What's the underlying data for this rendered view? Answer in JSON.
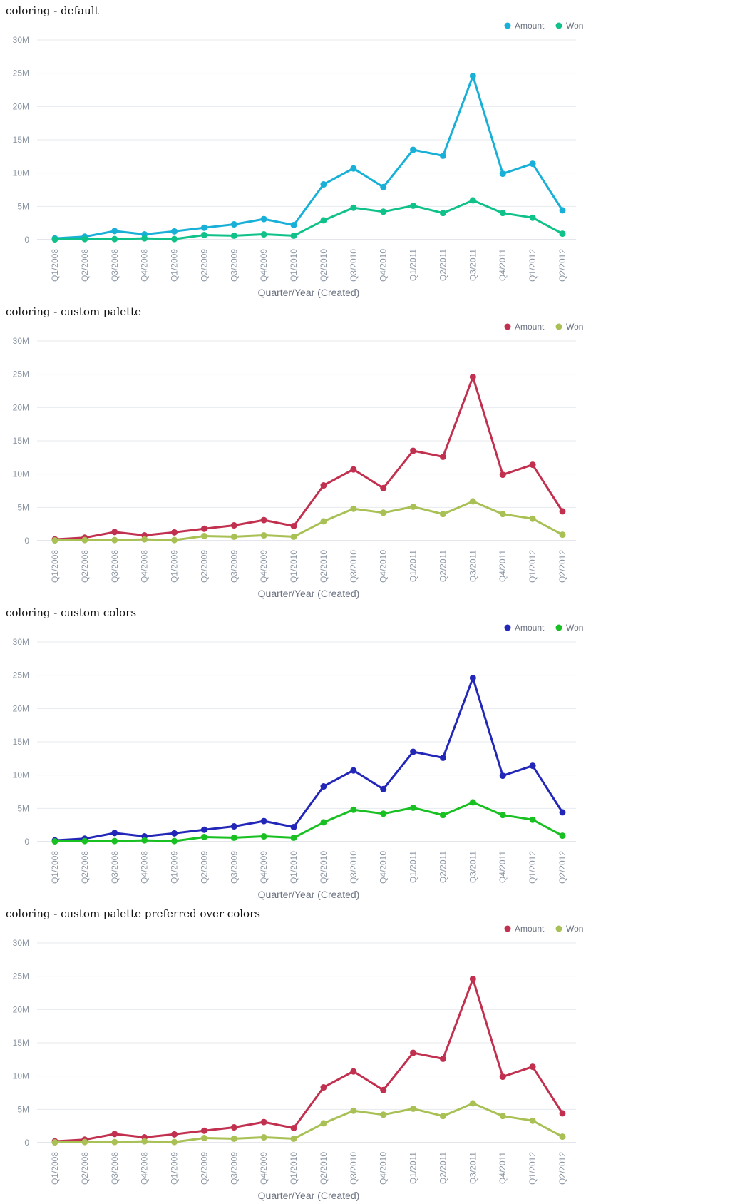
{
  "chart_data": [
    {
      "type": "line",
      "title": "coloring - default",
      "xlabel": "Quarter/Year (Created)",
      "ylabel": "",
      "ylim": [
        0,
        30000000
      ],
      "yticks": [
        "0",
        "5M",
        "10M",
        "15M",
        "20M",
        "25M",
        "30M"
      ],
      "grid": true,
      "legend_position": "top-right",
      "categories": [
        "Q1/2008",
        "Q2/2008",
        "Q3/2008",
        "Q4/2008",
        "Q1/2009",
        "Q2/2009",
        "Q3/2009",
        "Q4/2009",
        "Q1/2010",
        "Q2/2010",
        "Q3/2010",
        "Q4/2010",
        "Q1/2011",
        "Q2/2011",
        "Q3/2011",
        "Q4/2011",
        "Q1/2012",
        "Q2/2012"
      ],
      "series": [
        {
          "name": "Amount",
          "color": "#19b0d8",
          "values": [
            200000,
            450000,
            1300000,
            800000,
            1250000,
            1800000,
            2300000,
            3100000,
            2200000,
            8300000,
            10700000,
            7900000,
            13500000,
            12600000,
            24600000,
            9900000,
            11400000,
            4400000
          ]
        },
        {
          "name": "Won",
          "color": "#10c28a",
          "values": [
            50000,
            100000,
            100000,
            200000,
            100000,
            700000,
            600000,
            800000,
            600000,
            2900000,
            4800000,
            4200000,
            5100000,
            4000000,
            5900000,
            4000000,
            3300000,
            900000
          ]
        }
      ]
    },
    {
      "type": "line",
      "title": "coloring - custom palette",
      "xlabel": "Quarter/Year (Created)",
      "ylabel": "",
      "ylim": [
        0,
        30000000
      ],
      "yticks": [
        "0",
        "5M",
        "10M",
        "15M",
        "20M",
        "25M",
        "30M"
      ],
      "grid": true,
      "legend_position": "top-right",
      "categories": [
        "Q1/2008",
        "Q2/2008",
        "Q3/2008",
        "Q4/2008",
        "Q1/2009",
        "Q2/2009",
        "Q3/2009",
        "Q4/2009",
        "Q1/2010",
        "Q2/2010",
        "Q3/2010",
        "Q4/2010",
        "Q1/2011",
        "Q2/2011",
        "Q3/2011",
        "Q4/2011",
        "Q1/2012",
        "Q2/2012"
      ],
      "series": [
        {
          "name": "Amount",
          "color": "#c1304f",
          "values": [
            200000,
            450000,
            1300000,
            800000,
            1250000,
            1800000,
            2300000,
            3100000,
            2200000,
            8300000,
            10700000,
            7900000,
            13500000,
            12600000,
            24600000,
            9900000,
            11400000,
            4400000
          ]
        },
        {
          "name": "Won",
          "color": "#a8c054",
          "values": [
            50000,
            100000,
            100000,
            200000,
            100000,
            700000,
            600000,
            800000,
            600000,
            2900000,
            4800000,
            4200000,
            5100000,
            4000000,
            5900000,
            4000000,
            3300000,
            900000
          ]
        }
      ]
    },
    {
      "type": "line",
      "title": "coloring - custom colors",
      "xlabel": "Quarter/Year (Created)",
      "ylabel": "",
      "ylim": [
        0,
        30000000
      ],
      "yticks": [
        "0",
        "5M",
        "10M",
        "15M",
        "20M",
        "25M",
        "30M"
      ],
      "grid": true,
      "legend_position": "top-right",
      "categories": [
        "Q1/2008",
        "Q2/2008",
        "Q3/2008",
        "Q4/2008",
        "Q1/2009",
        "Q2/2009",
        "Q3/2009",
        "Q4/2009",
        "Q1/2010",
        "Q2/2010",
        "Q3/2010",
        "Q4/2010",
        "Q1/2011",
        "Q2/2011",
        "Q3/2011",
        "Q4/2011",
        "Q1/2012",
        "Q2/2012"
      ],
      "series": [
        {
          "name": "Amount",
          "color": "#2327b8",
          "values": [
            200000,
            450000,
            1300000,
            800000,
            1250000,
            1800000,
            2300000,
            3100000,
            2200000,
            8300000,
            10700000,
            7900000,
            13500000,
            12600000,
            24600000,
            9900000,
            11400000,
            4400000
          ]
        },
        {
          "name": "Won",
          "color": "#19c022",
          "values": [
            50000,
            100000,
            100000,
            200000,
            100000,
            700000,
            600000,
            800000,
            600000,
            2900000,
            4800000,
            4200000,
            5100000,
            4000000,
            5900000,
            4000000,
            3300000,
            900000
          ]
        }
      ]
    },
    {
      "type": "line",
      "title": "coloring - custom palette preferred over colors",
      "xlabel": "Quarter/Year (Created)",
      "ylabel": "",
      "ylim": [
        0,
        30000000
      ],
      "yticks": [
        "0",
        "5M",
        "10M",
        "15M",
        "20M",
        "25M",
        "30M"
      ],
      "grid": true,
      "legend_position": "top-right",
      "categories": [
        "Q1/2008",
        "Q2/2008",
        "Q3/2008",
        "Q4/2008",
        "Q1/2009",
        "Q2/2009",
        "Q3/2009",
        "Q4/2009",
        "Q1/2010",
        "Q2/2010",
        "Q3/2010",
        "Q4/2010",
        "Q1/2011",
        "Q2/2011",
        "Q3/2011",
        "Q4/2011",
        "Q1/2012",
        "Q2/2012"
      ],
      "series": [
        {
          "name": "Amount",
          "color": "#c1304f",
          "values": [
            200000,
            450000,
            1300000,
            800000,
            1250000,
            1800000,
            2300000,
            3100000,
            2200000,
            8300000,
            10700000,
            7900000,
            13500000,
            12600000,
            24600000,
            9900000,
            11400000,
            4400000
          ]
        },
        {
          "name": "Won",
          "color": "#a8c054",
          "values": [
            50000,
            100000,
            100000,
            200000,
            100000,
            700000,
            600000,
            800000,
            600000,
            2900000,
            4800000,
            4200000,
            5100000,
            4000000,
            5900000,
            4000000,
            3300000,
            900000
          ]
        }
      ]
    }
  ]
}
